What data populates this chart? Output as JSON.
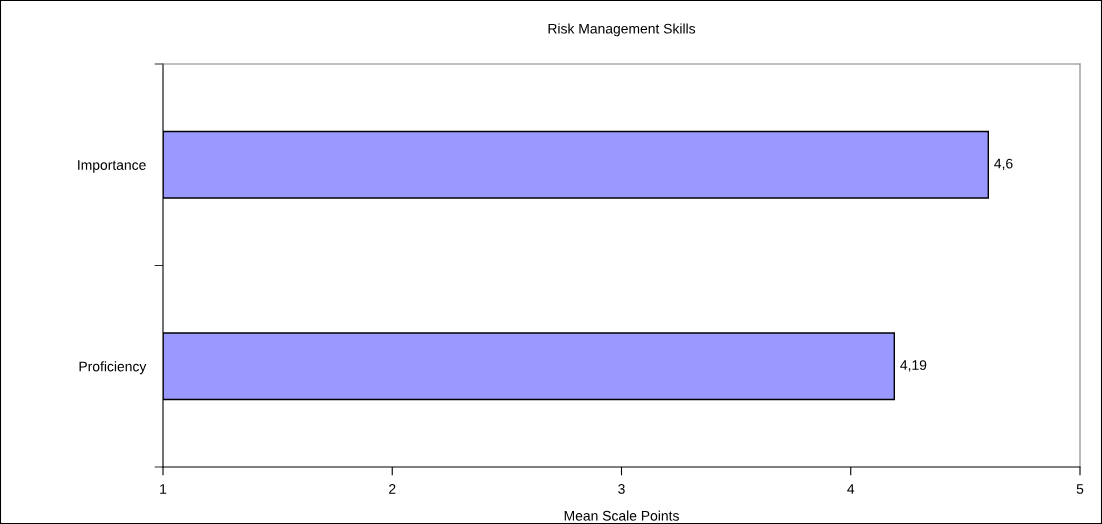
{
  "chart_data": {
    "type": "bar",
    "orientation": "horizontal",
    "title": "Risk Management Skills",
    "xlabel": "Mean Scale Points",
    "categories": [
      "Importance",
      "Proficiency"
    ],
    "values": [
      4.6,
      4.19
    ],
    "value_labels": [
      "4,6",
      "4,19"
    ],
    "color": "#9999ff",
    "xlim": [
      1,
      5
    ],
    "xticks": [
      1,
      2,
      3,
      4,
      5
    ],
    "grid": false,
    "legend": false
  }
}
